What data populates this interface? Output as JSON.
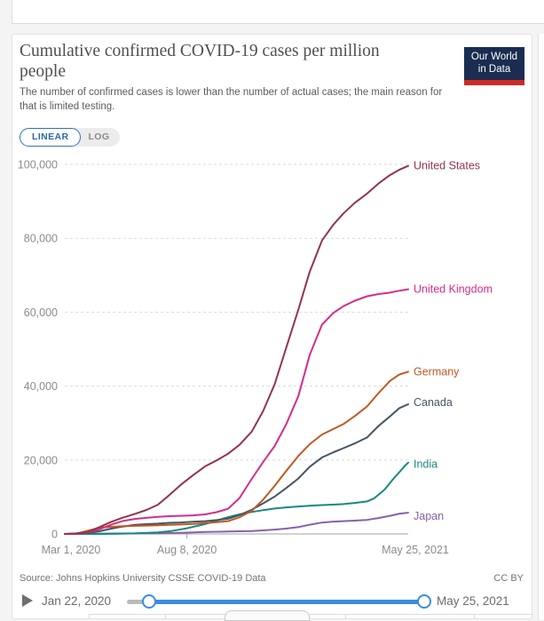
{
  "header": {
    "title": "Cumulative confirmed COVID-19 cases per million people",
    "subtitle": "The number of confirmed cases is lower than the number of actual cases; the main reason for that is limited testing.",
    "logo": {
      "line1": "Our World",
      "line2": "in Data",
      "navy": "#1a2d50",
      "red": "#cd2a26"
    }
  },
  "controls": {
    "linear_label": "LINEAR",
    "log_label": "LOG"
  },
  "chart_data": {
    "type": "line",
    "title": "Cumulative confirmed COVID-19 cases per million people",
    "grid": "dashed-horizontal",
    "legend_position": "right-of-line-ends",
    "x_domain_days": [
      0,
      450
    ],
    "x_axis": {
      "ticks": [
        {
          "label": "Mar 1, 2020",
          "day": 0,
          "dx": 7,
          "tick": false
        },
        {
          "label": "Aug 8, 2020",
          "day": 160,
          "dx": 0,
          "tick": true
        },
        {
          "label": "May 25, 2021",
          "day": 450,
          "dx": 8,
          "tick": false
        }
      ]
    },
    "y_axis": {
      "max": 100000,
      "ticks": [
        {
          "value": 0,
          "label": "0"
        },
        {
          "value": 20000,
          "label": "20,000"
        },
        {
          "value": 40000,
          "label": "40,000"
        },
        {
          "value": 60000,
          "label": "60,000"
        },
        {
          "value": 80000,
          "label": "80,000"
        },
        {
          "value": 100000,
          "label": "100,000"
        }
      ]
    },
    "series": [
      {
        "name": "United States",
        "color": "#92344A",
        "label_dy": 0,
        "points": [
          [
            0,
            0
          ],
          [
            15,
            150
          ],
          [
            31,
            570
          ],
          [
            46,
            1900
          ],
          [
            61,
            3300
          ],
          [
            76,
            4400
          ],
          [
            92,
            5440
          ],
          [
            107,
            6500
          ],
          [
            122,
            7900
          ],
          [
            137,
            10500
          ],
          [
            152,
            13300
          ],
          [
            168,
            15900
          ],
          [
            184,
            18300
          ],
          [
            199,
            19900
          ],
          [
            214,
            21700
          ],
          [
            229,
            24100
          ],
          [
            245,
            27700
          ],
          [
            260,
            33300
          ],
          [
            275,
            40500
          ],
          [
            290,
            50300
          ],
          [
            306,
            60700
          ],
          [
            321,
            71000
          ],
          [
            337,
            79400
          ],
          [
            352,
            83700
          ],
          [
            365,
            86700
          ],
          [
            380,
            89600
          ],
          [
            396,
            92100
          ],
          [
            411,
            94800
          ],
          [
            426,
            97100
          ],
          [
            438,
            98500
          ],
          [
            450,
            99600
          ]
        ]
      },
      {
        "name": "United Kingdom",
        "color": "#D42E87",
        "label_dy": 0,
        "points": [
          [
            0,
            0
          ],
          [
            15,
            50
          ],
          [
            31,
            400
          ],
          [
            46,
            1300
          ],
          [
            61,
            2560
          ],
          [
            76,
            3500
          ],
          [
            92,
            4060
          ],
          [
            107,
            4350
          ],
          [
            122,
            4630
          ],
          [
            137,
            4800
          ],
          [
            152,
            4900
          ],
          [
            168,
            5030
          ],
          [
            184,
            5300
          ],
          [
            199,
            5900
          ],
          [
            214,
            6800
          ],
          [
            229,
            9700
          ],
          [
            245,
            14900
          ],
          [
            260,
            19500
          ],
          [
            275,
            23800
          ],
          [
            290,
            29600
          ],
          [
            306,
            37300
          ],
          [
            321,
            48500
          ],
          [
            337,
            56600
          ],
          [
            352,
            59800
          ],
          [
            365,
            61600
          ],
          [
            380,
            63100
          ],
          [
            396,
            64300
          ],
          [
            411,
            64900
          ],
          [
            426,
            65300
          ],
          [
            438,
            65800
          ],
          [
            450,
            66200
          ]
        ]
      },
      {
        "name": "Germany",
        "color": "#C05821",
        "label_dy": 0,
        "points": [
          [
            0,
            0
          ],
          [
            15,
            70
          ],
          [
            31,
            920
          ],
          [
            46,
            1700
          ],
          [
            61,
            1940
          ],
          [
            76,
            2100
          ],
          [
            92,
            2180
          ],
          [
            107,
            2260
          ],
          [
            122,
            2330
          ],
          [
            137,
            2450
          ],
          [
            152,
            2550
          ],
          [
            168,
            2700
          ],
          [
            184,
            2940
          ],
          [
            199,
            3200
          ],
          [
            214,
            3470
          ],
          [
            229,
            4500
          ],
          [
            245,
            6250
          ],
          [
            260,
            9300
          ],
          [
            275,
            13000
          ],
          [
            290,
            17000
          ],
          [
            306,
            21100
          ],
          [
            321,
            24300
          ],
          [
            337,
            26900
          ],
          [
            352,
            28400
          ],
          [
            365,
            29700
          ],
          [
            380,
            31900
          ],
          [
            396,
            34500
          ],
          [
            411,
            38100
          ],
          [
            426,
            41400
          ],
          [
            438,
            43100
          ],
          [
            450,
            43900
          ]
        ]
      },
      {
        "name": "Canada",
        "color": "#425566",
        "label_dy": -2,
        "points": [
          [
            0,
            0
          ],
          [
            15,
            10
          ],
          [
            31,
            230
          ],
          [
            46,
            750
          ],
          [
            61,
            1440
          ],
          [
            76,
            2000
          ],
          [
            92,
            2440
          ],
          [
            107,
            2650
          ],
          [
            122,
            2800
          ],
          [
            137,
            3000
          ],
          [
            152,
            3100
          ],
          [
            168,
            3300
          ],
          [
            184,
            3450
          ],
          [
            199,
            3750
          ],
          [
            214,
            4100
          ],
          [
            229,
            5100
          ],
          [
            245,
            6550
          ],
          [
            260,
            8300
          ],
          [
            275,
            10100
          ],
          [
            290,
            12400
          ],
          [
            306,
            15000
          ],
          [
            321,
            18200
          ],
          [
            337,
            20700
          ],
          [
            352,
            22100
          ],
          [
            365,
            23200
          ],
          [
            380,
            24500
          ],
          [
            396,
            26100
          ],
          [
            411,
            29200
          ],
          [
            426,
            31800
          ],
          [
            438,
            34000
          ],
          [
            450,
            35100
          ]
        ]
      },
      {
        "name": "India",
        "color": "#17897E",
        "label_dy": 2,
        "points": [
          [
            0,
            0
          ],
          [
            31,
            1
          ],
          [
            61,
            25
          ],
          [
            92,
            138
          ],
          [
            122,
            420
          ],
          [
            140,
            800
          ],
          [
            160,
            1540
          ],
          [
            184,
            2680
          ],
          [
            199,
            3600
          ],
          [
            214,
            4550
          ],
          [
            229,
            5300
          ],
          [
            245,
            5940
          ],
          [
            260,
            6450
          ],
          [
            275,
            6870
          ],
          [
            290,
            7180
          ],
          [
            306,
            7430
          ],
          [
            321,
            7650
          ],
          [
            337,
            7810
          ],
          [
            352,
            7940
          ],
          [
            365,
            8070
          ],
          [
            380,
            8400
          ],
          [
            396,
            8810
          ],
          [
            405,
            9600
          ],
          [
            411,
            10600
          ],
          [
            419,
            12000
          ],
          [
            426,
            13800
          ],
          [
            433,
            15500
          ],
          [
            440,
            17100
          ],
          [
            445,
            18300
          ],
          [
            450,
            19300
          ]
        ]
      },
      {
        "name": "Japan",
        "color": "#8860AD",
        "label_dy": 4,
        "points": [
          [
            0,
            0
          ],
          [
            31,
            17
          ],
          [
            61,
            113
          ],
          [
            92,
            133
          ],
          [
            122,
            148
          ],
          [
            140,
            230
          ],
          [
            160,
            350
          ],
          [
            184,
            540
          ],
          [
            214,
            660
          ],
          [
            245,
            780
          ],
          [
            260,
            950
          ],
          [
            275,
            1170
          ],
          [
            290,
            1450
          ],
          [
            306,
            1850
          ],
          [
            321,
            2500
          ],
          [
            337,
            3080
          ],
          [
            352,
            3330
          ],
          [
            365,
            3460
          ],
          [
            380,
            3600
          ],
          [
            396,
            3790
          ],
          [
            411,
            4300
          ],
          [
            426,
            4900
          ],
          [
            438,
            5450
          ],
          [
            450,
            5740
          ]
        ]
      }
    ]
  },
  "footer": {
    "source": "Source: Johns Hopkins University CSSE COVID-19 Data",
    "license": "CC BY"
  },
  "timeline": {
    "start_label": "Jan 22, 2020",
    "end_label": "May 25, 2021"
  }
}
